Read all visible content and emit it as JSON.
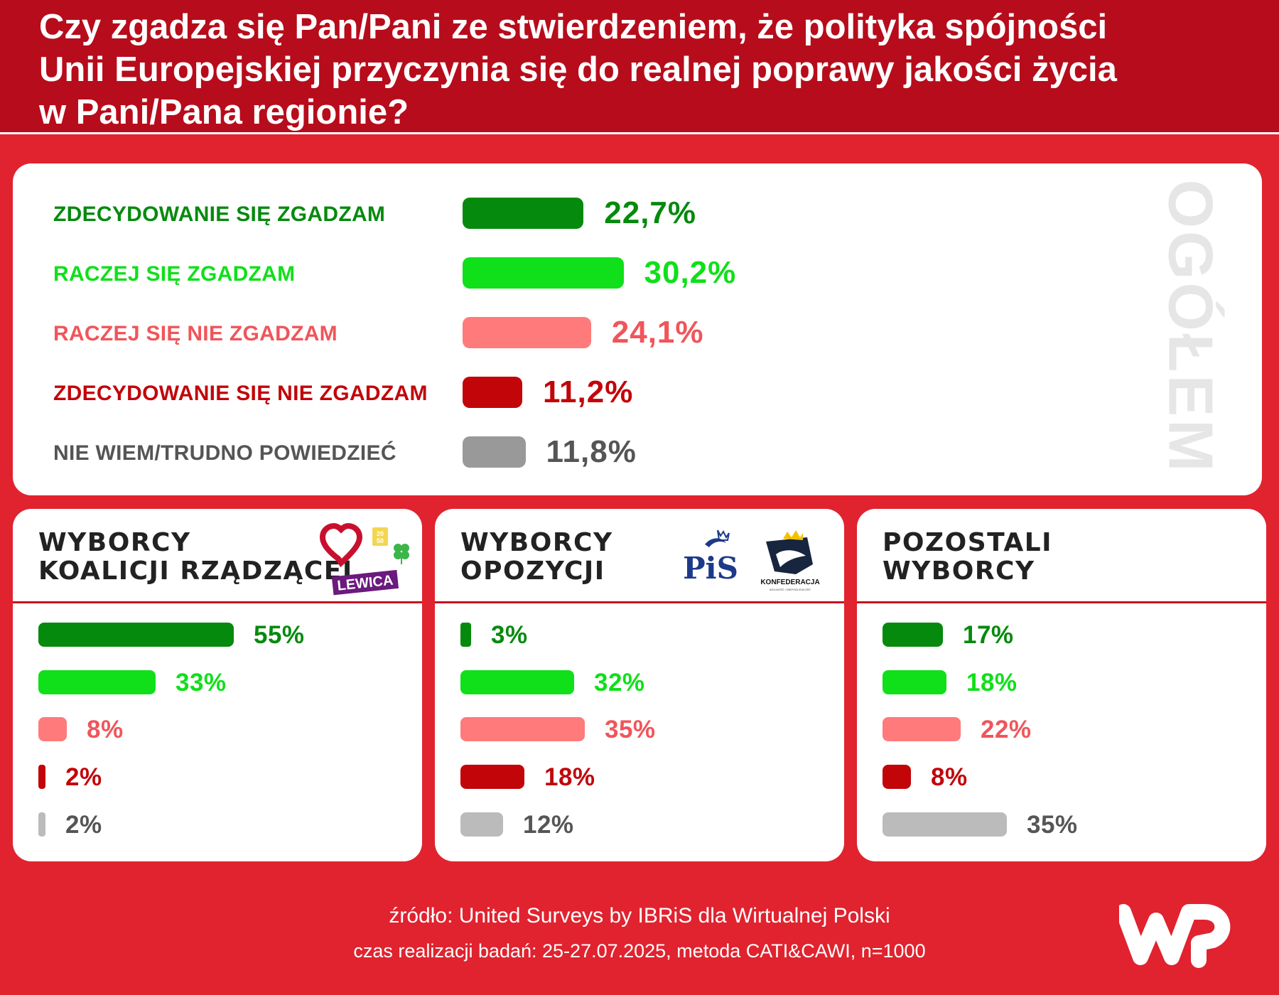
{
  "title_lines": [
    "Czy zgadza się Pan/Pani ze stwierdzeniem, że polityka spójności",
    "Unii Europejskiej przyczynia się do realnej poprawy jakości życia",
    "w Pani/Pana regionie?"
  ],
  "colors": {
    "strongly_agree": "#068a0e",
    "agree": "#0fe019",
    "disagree": "#ff7a7b",
    "strongly_disagree": "#c20509",
    "dont_know": "#999999",
    "dont_know_panel": "#bbbbbb",
    "background": "#e0232f",
    "header": "#b70c1b"
  },
  "overall_label": "OGÓŁEM",
  "chart_data": [
    {
      "type": "bar",
      "orientation": "horizontal",
      "panel": "OGÓŁEM",
      "categories": [
        "ZDECYDOWANIE SIĘ ZGADZAM",
        "RACZEJ SIĘ ZGADZAM",
        "RACZEJ SIĘ NIE ZGADZAM",
        "ZDECYDOWANIE SIĘ NIE ZGADZAM",
        "NIE WIEM/TRUDNO POWIEDZIEĆ"
      ],
      "values": [
        22.7,
        30.2,
        24.1,
        11.2,
        11.8
      ],
      "value_labels": [
        "22,7%",
        "30,2%",
        "24,1%",
        "11,2%",
        "11,8%"
      ]
    },
    {
      "type": "bar",
      "orientation": "horizontal",
      "title_lines": [
        "WYBORCY",
        "KOALICJI RZĄDZĄCEJ"
      ],
      "categories": [
        "ZDECYDOWANIE SIĘ ZGADZAM",
        "RACZEJ SIĘ ZGADZAM",
        "RACZEJ SIĘ NIE ZGADZAM",
        "ZDECYDOWANIE SIĘ NIE ZGADZAM",
        "NIE WIEM/TRUDNO POWIEDZIEĆ"
      ],
      "values": [
        55,
        33,
        8,
        2,
        2
      ],
      "value_labels": [
        "55%",
        "33%",
        "8%",
        "2%",
        "2%"
      ]
    },
    {
      "type": "bar",
      "orientation": "horizontal",
      "title_lines": [
        "WYBORCY",
        "OPOZYCJI"
      ],
      "categories": [
        "ZDECYDOWANIE SIĘ ZGADZAM",
        "RACZEJ SIĘ ZGADZAM",
        "RACZEJ SIĘ NIE ZGADZAM",
        "ZDECYDOWANIE SIĘ NIE ZGADZAM",
        "NIE WIEM/TRUDNO POWIEDZIEĆ"
      ],
      "values": [
        3,
        32,
        35,
        18,
        12
      ],
      "value_labels": [
        "3%",
        "32%",
        "35%",
        "18%",
        "12%"
      ]
    },
    {
      "type": "bar",
      "orientation": "horizontal",
      "title_lines": [
        "POZOSTALI",
        "WYBORCY"
      ],
      "categories": [
        "ZDECYDOWANIE SIĘ ZGADZAM",
        "RACZEJ SIĘ ZGADZAM",
        "RACZEJ SIĘ NIE ZGADZAM",
        "ZDECYDOWANIE SIĘ NIE ZGADZAM",
        "NIE WIEM/TRUDNO POWIEDZIEĆ"
      ],
      "values": [
        17,
        18,
        22,
        8,
        35
      ],
      "value_labels": [
        "17%",
        "18%",
        "22%",
        "8%",
        "35%"
      ]
    }
  ],
  "logos": {
    "coalition": [
      "heart-logo",
      "polska-2050-logo",
      "psl-clover-logo",
      "LEWICA"
    ],
    "opposition": [
      "PiS",
      "KONFEDERACJA",
      "WOLNOŚĆ I NIEPODLEGŁOŚĆ"
    ]
  },
  "footer": {
    "source": "źródło: United Surveys by IBRiS dla Wirtualnej Polski",
    "details": "czas realizacji badań: 25-27.07.2025, metoda CATI&CAWI, n=1000"
  }
}
